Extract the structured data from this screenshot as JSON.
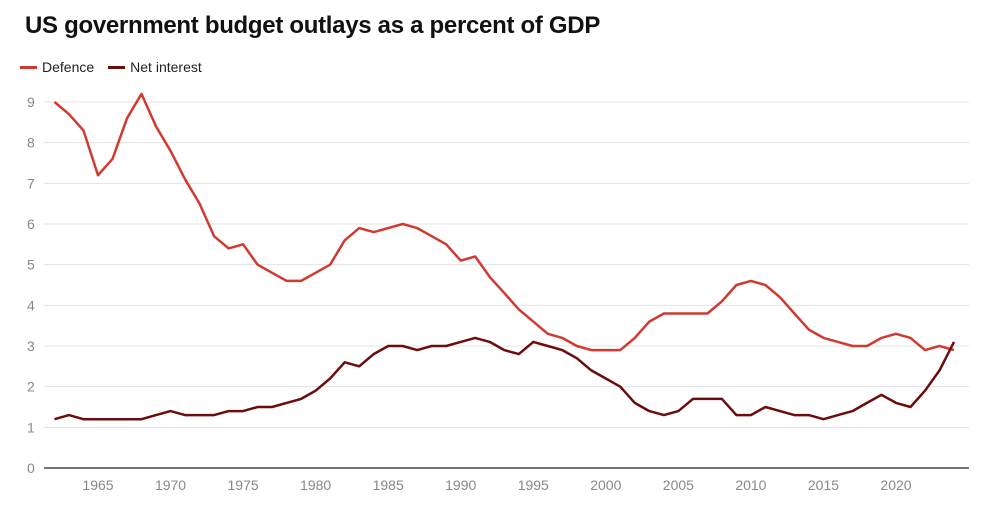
{
  "chart_data": {
    "type": "line",
    "title": "US government budget outlays as a percent of GDP",
    "xlabel": "",
    "ylabel": "",
    "legend_position": "top-left",
    "grid": true,
    "xlim": [
      1962,
      2024
    ],
    "ylim": [
      0,
      9
    ],
    "xticks": [
      1965,
      1970,
      1975,
      1980,
      1985,
      1990,
      1995,
      2000,
      2005,
      2010,
      2015,
      2020
    ],
    "yticks": [
      0,
      1,
      2,
      3,
      4,
      5,
      6,
      7,
      8,
      9
    ],
    "x": [
      1962,
      1963,
      1964,
      1965,
      1966,
      1967,
      1968,
      1969,
      1970,
      1971,
      1972,
      1973,
      1974,
      1975,
      1976,
      1977,
      1978,
      1979,
      1980,
      1981,
      1982,
      1983,
      1984,
      1985,
      1986,
      1987,
      1988,
      1989,
      1990,
      1991,
      1992,
      1993,
      1994,
      1995,
      1996,
      1997,
      1998,
      1999,
      2000,
      2001,
      2002,
      2003,
      2004,
      2005,
      2006,
      2007,
      2008,
      2009,
      2010,
      2011,
      2012,
      2013,
      2014,
      2015,
      2016,
      2017,
      2018,
      2019,
      2020,
      2021,
      2022,
      2023,
      2024
    ],
    "series": [
      {
        "name": "Defence",
        "color": "#d13a31",
        "values": [
          9.0,
          8.7,
          8.3,
          7.2,
          7.6,
          8.6,
          9.2,
          8.4,
          7.8,
          7.1,
          6.5,
          5.7,
          5.4,
          5.5,
          5.0,
          4.8,
          4.6,
          4.6,
          4.8,
          5.0,
          5.6,
          5.9,
          5.8,
          5.9,
          6.0,
          5.9,
          5.7,
          5.5,
          5.1,
          5.2,
          4.7,
          4.3,
          3.9,
          3.6,
          3.3,
          3.2,
          3.0,
          2.9,
          2.9,
          2.9,
          3.2,
          3.6,
          3.8,
          3.8,
          3.8,
          3.8,
          4.1,
          4.5,
          4.6,
          4.5,
          4.2,
          3.8,
          3.4,
          3.2,
          3.1,
          3.0,
          3.0,
          3.2,
          3.3,
          3.2,
          2.9,
          3.0,
          2.9
        ]
      },
      {
        "name": "Net interest",
        "color": "#6b0d0d",
        "values": [
          1.2,
          1.3,
          1.2,
          1.2,
          1.2,
          1.2,
          1.2,
          1.3,
          1.4,
          1.3,
          1.3,
          1.3,
          1.4,
          1.4,
          1.5,
          1.5,
          1.6,
          1.7,
          1.9,
          2.2,
          2.6,
          2.5,
          2.8,
          3.0,
          3.0,
          2.9,
          3.0,
          3.0,
          3.1,
          3.2,
          3.1,
          2.9,
          2.8,
          3.1,
          3.0,
          2.9,
          2.7,
          2.4,
          2.2,
          2.0,
          1.6,
          1.4,
          1.3,
          1.4,
          1.7,
          1.7,
          1.7,
          1.3,
          1.3,
          1.5,
          1.4,
          1.3,
          1.3,
          1.2,
          1.3,
          1.4,
          1.6,
          1.8,
          1.6,
          1.5,
          1.9,
          2.4,
          3.1
        ]
      }
    ]
  }
}
